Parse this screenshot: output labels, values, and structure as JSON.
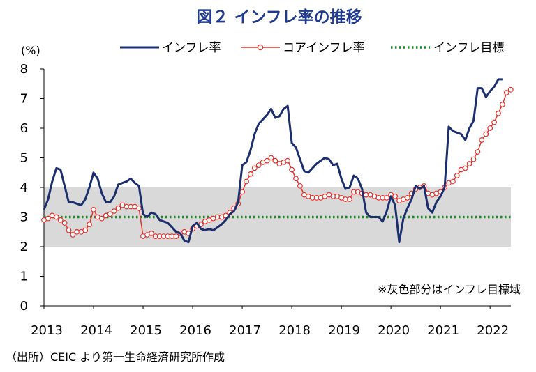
{
  "chart_data": {
    "type": "line",
    "title": "図２ インフレ率の推移",
    "unit_label": "(%)",
    "ylim": [
      0,
      8
    ],
    "yticks": [
      "0",
      "1",
      "2",
      "3",
      "4",
      "5",
      "6",
      "7",
      "8"
    ],
    "xlim": [
      2013.0,
      2022.42
    ],
    "xticks": [
      "2013",
      "2014",
      "2015",
      "2016",
      "2017",
      "2018",
      "2019",
      "2020",
      "2021",
      "2022"
    ],
    "target_band": [
      2,
      4
    ],
    "target_value": 3,
    "note": "※灰色部分はインフレ目標域",
    "legend": [
      "インフレ率",
      "コアインフレ率",
      "インフレ目標"
    ],
    "colors": {
      "headline": "#1b2f6e",
      "core": "#e8312c",
      "target": "#1a8a24",
      "band": "#d9d9d9"
    },
    "series": [
      {
        "name": "インフレ率",
        "values": [
          3.25,
          3.6,
          4.2,
          4.65,
          4.6,
          4.05,
          3.5,
          3.5,
          3.45,
          3.4,
          3.6,
          4.0,
          4.5,
          4.3,
          3.8,
          3.5,
          3.5,
          3.7,
          4.1,
          4.15,
          4.2,
          4.3,
          4.15,
          4.05,
          3.1,
          3.0,
          3.15,
          3.1,
          2.9,
          2.85,
          2.8,
          2.65,
          2.5,
          2.45,
          2.2,
          2.15,
          2.7,
          2.8,
          2.6,
          2.55,
          2.6,
          2.55,
          2.65,
          2.75,
          2.9,
          3.1,
          3.2,
          3.5,
          4.75,
          4.85,
          5.25,
          5.8,
          6.15,
          6.3,
          6.45,
          6.65,
          6.35,
          6.4,
          6.65,
          6.75,
          5.5,
          5.35,
          4.95,
          4.55,
          4.5,
          4.65,
          4.8,
          4.9,
          5.0,
          4.95,
          4.75,
          4.8,
          4.3,
          3.95,
          4.0,
          4.4,
          4.3,
          3.95,
          3.15,
          3.0,
          3.0,
          3.0,
          2.85,
          3.2,
          3.7,
          3.4,
          2.15,
          2.95,
          3.3,
          3.6,
          4.05,
          3.95,
          4.05,
          3.3,
          3.15,
          3.5,
          3.7,
          4.0,
          6.05,
          5.9,
          5.85,
          5.8,
          5.6,
          6.0,
          6.25,
          7.35,
          7.35,
          7.05,
          7.25,
          7.4,
          7.65,
          7.65
        ]
      },
      {
        "name": "コアインフレ率",
        "values": [
          2.9,
          2.95,
          3.05,
          3.0,
          2.9,
          2.8,
          2.55,
          2.4,
          2.5,
          2.5,
          2.55,
          2.75,
          3.25,
          3.0,
          2.95,
          3.05,
          3.1,
          3.2,
          3.3,
          3.4,
          3.35,
          3.35,
          3.35,
          3.3,
          2.35,
          2.4,
          2.45,
          2.35,
          2.35,
          2.35,
          2.35,
          2.35,
          2.35,
          2.45,
          2.5,
          2.45,
          2.6,
          2.7,
          2.75,
          2.85,
          2.9,
          2.95,
          3.0,
          3.0,
          3.05,
          3.15,
          3.3,
          3.45,
          3.85,
          4.2,
          4.45,
          4.65,
          4.75,
          4.85,
          4.9,
          5.0,
          4.9,
          4.8,
          4.85,
          4.9,
          4.6,
          4.3,
          4.05,
          3.75,
          3.7,
          3.65,
          3.65,
          3.65,
          3.7,
          3.75,
          3.7,
          3.7,
          3.65,
          3.6,
          3.6,
          3.85,
          3.85,
          3.8,
          3.75,
          3.75,
          3.7,
          3.65,
          3.65,
          3.65,
          3.75,
          3.7,
          3.55,
          3.6,
          3.65,
          3.8,
          3.95,
          4.0,
          4.05,
          3.8,
          3.75,
          3.8,
          3.85,
          4.0,
          4.15,
          4.2,
          4.4,
          4.6,
          4.65,
          4.8,
          4.95,
          5.2,
          5.6,
          5.8,
          6.0,
          6.2,
          6.5,
          6.8,
          7.2,
          7.3
        ]
      }
    ],
    "x_start": 2013.0,
    "x_step": 0.0833333,
    "source": "（出所）CEIC より第一生命経済研究所作成"
  }
}
